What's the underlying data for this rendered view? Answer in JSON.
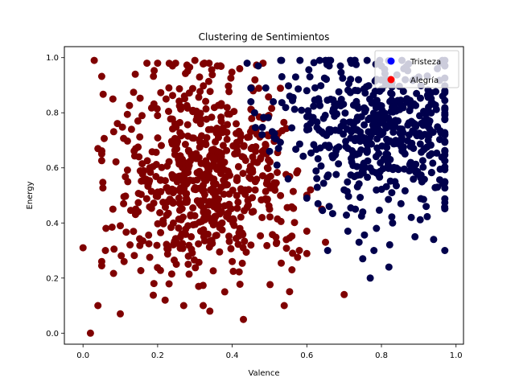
{
  "chart_data": {
    "type": "scatter",
    "title": "Clustering de Sentimientos",
    "xlabel": "Valence",
    "ylabel": "Energy",
    "xlim": [
      -0.05,
      1.02
    ],
    "ylim": [
      -0.04,
      1.04
    ],
    "xticks": [
      "0.0",
      "0.2",
      "0.4",
      "0.6",
      "0.8",
      "1.0"
    ],
    "yticks": [
      "0.0",
      "0.2",
      "0.4",
      "0.6",
      "0.8",
      "1.0"
    ],
    "legend_position": "top-right",
    "grid": false,
    "series": [
      {
        "name": "Tristeza",
        "legend_color": "#0000ff",
        "color": "#00004c",
        "generated_distribution": {
          "count": 520,
          "x_range": [
            0.45,
            0.97
          ],
          "y_range": [
            0.3,
            0.99
          ],
          "x_mean": 0.78,
          "y_mean": 0.73,
          "x_spread": 0.13,
          "y_spread": 0.13
        },
        "points": [
          [
            0.53,
            0.99
          ],
          [
            0.57,
            0.93
          ],
          [
            0.6,
            0.88
          ],
          [
            0.44,
            0.98
          ],
          [
            0.47,
            0.97
          ],
          [
            0.66,
            0.97
          ],
          [
            0.69,
            0.97
          ],
          [
            0.72,
            0.98
          ],
          [
            0.8,
            0.97
          ],
          [
            0.86,
            0.96
          ],
          [
            0.9,
            0.93
          ],
          [
            0.95,
            0.96
          ],
          [
            0.97,
            0.97
          ],
          [
            0.7,
            0.52
          ],
          [
            0.73,
            0.45
          ],
          [
            0.75,
            0.44
          ],
          [
            0.77,
            0.2
          ],
          [
            0.75,
            0.27
          ],
          [
            0.82,
            0.24
          ],
          [
            0.78,
            0.3
          ],
          [
            0.71,
            0.37
          ],
          [
            0.74,
            0.33
          ],
          [
            0.89,
            0.35
          ],
          [
            0.94,
            0.34
          ],
          [
            0.83,
            0.4
          ],
          [
            0.88,
            0.42
          ],
          [
            0.92,
            0.46
          ],
          [
            0.95,
            0.53
          ],
          [
            0.97,
            0.55
          ],
          [
            0.66,
            0.46
          ],
          [
            0.63,
            0.47
          ],
          [
            0.6,
            0.49
          ],
          [
            0.55,
            0.56
          ],
          [
            0.52,
            0.61
          ],
          [
            0.5,
            0.66
          ],
          [
            0.48,
            0.72
          ],
          [
            0.46,
            0.8
          ],
          [
            0.45,
            0.84
          ],
          [
            0.49,
            0.89
          ],
          [
            0.51,
            0.84
          ]
        ]
      },
      {
        "name": "Alegría",
        "legend_color": "#ff0000",
        "color": "#7f0000",
        "generated_distribution": {
          "count": 640,
          "x_range": [
            0.05,
            0.6
          ],
          "y_range": [
            0.1,
            0.98
          ],
          "x_mean": 0.33,
          "y_mean": 0.58,
          "x_spread": 0.12,
          "y_spread": 0.18
        },
        "points": [
          [
            0.03,
            0.99
          ],
          [
            0.0,
            0.31
          ],
          [
            0.02,
            0.0
          ],
          [
            0.04,
            0.1
          ],
          [
            0.1,
            0.07
          ],
          [
            0.7,
            0.14
          ],
          [
            0.43,
            0.05
          ],
          [
            0.34,
            0.08
          ],
          [
            0.27,
            0.1
          ],
          [
            0.22,
            0.12
          ],
          [
            0.19,
            0.18
          ],
          [
            0.05,
            0.26
          ],
          [
            0.06,
            0.3
          ],
          [
            0.08,
            0.45
          ],
          [
            0.04,
            0.67
          ],
          [
            0.08,
            0.85
          ],
          [
            0.14,
            0.94
          ],
          [
            0.2,
            0.98
          ],
          [
            0.24,
            0.97
          ],
          [
            0.3,
            0.99
          ],
          [
            0.36,
            0.97
          ],
          [
            0.42,
            0.96
          ],
          [
            0.58,
            0.3
          ],
          [
            0.6,
            0.37
          ],
          [
            0.56,
            0.23
          ],
          [
            0.65,
            0.33
          ],
          [
            0.64,
            0.45
          ],
          [
            0.61,
            0.52
          ],
          [
            0.38,
            0.15
          ],
          [
            0.4,
            0.26
          ],
          [
            0.11,
            0.26
          ],
          [
            0.1,
            0.39
          ],
          [
            0.12,
            0.55
          ],
          [
            0.13,
            0.74
          ],
          [
            0.15,
            0.64
          ],
          [
            0.31,
            0.17
          ],
          [
            0.25,
            0.25
          ],
          [
            0.29,
            0.35
          ],
          [
            0.45,
            0.32
          ],
          [
            0.5,
            0.45
          ]
        ]
      }
    ]
  }
}
